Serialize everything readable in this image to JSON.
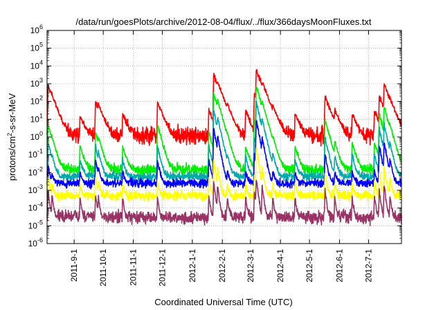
{
  "chart_data": {
    "type": "line",
    "title": "/data/run/goesPlots/archive/2012-08-04/flux/../flux/366daysMoonFluxes.txt",
    "xlabel": "Coordinated Universal Time (UTC)",
    "ylabel": {
      "base": "protons/cm",
      "sup": "2",
      "rest": "-s-sr-MeV"
    },
    "yscale": "log",
    "ylim": [
      1e-06,
      1000000.0
    ],
    "xlim": [
      "2011-08-04",
      "2012-08-04"
    ],
    "grid": true,
    "y_ticks": [
      {
        "value": 1e-06,
        "base": "10",
        "exp": "-6"
      },
      {
        "value": 1e-05,
        "base": "10",
        "exp": "-5"
      },
      {
        "value": 0.0001,
        "base": "10",
        "exp": "-4"
      },
      {
        "value": 0.001,
        "base": "10",
        "exp": "-3"
      },
      {
        "value": 0.01,
        "base": "10",
        "exp": "-2"
      },
      {
        "value": 0.1,
        "base": "10",
        "exp": "-1"
      },
      {
        "value": 1,
        "base": "10",
        "exp": "0"
      },
      {
        "value": 10,
        "base": "10",
        "exp": "1"
      },
      {
        "value": 100,
        "base": "10",
        "exp": "2"
      },
      {
        "value": 1000,
        "base": "10",
        "exp": "3"
      },
      {
        "value": 10000,
        "base": "10",
        "exp": "4"
      },
      {
        "value": 100000,
        "base": "10",
        "exp": "5"
      },
      {
        "value": 1000000,
        "base": "10",
        "exp": "6"
      }
    ],
    "x_ticks": [
      {
        "date": "2011-09-01",
        "label": "2011-9-1"
      },
      {
        "date": "2011-10-01",
        "label": "2011-10-1"
      },
      {
        "date": "2011-11-01",
        "label": "2011-11-1"
      },
      {
        "date": "2011-12-01",
        "label": "2011-12-1"
      },
      {
        "date": "2012-01-01",
        "label": "2012-1-1"
      },
      {
        "date": "2012-02-01",
        "label": "2012-2-1"
      },
      {
        "date": "2012-03-01",
        "label": "2012-3-1"
      },
      {
        "date": "2012-04-01",
        "label": "2012-4-1"
      },
      {
        "date": "2012-05-01",
        "label": "2012-5-1"
      },
      {
        "date": "2012-06-01",
        "label": "2012-6-1"
      },
      {
        "date": "2012-07-01",
        "label": "2012-7-1"
      }
    ],
    "events": [
      {
        "date": "2011-08-05",
        "peaks": [
          800,
          5,
          0.5,
          0.02,
          0.005,
          0.0008
        ]
      },
      {
        "date": "2011-08-09",
        "peaks": [
          30,
          0.3,
          0.05,
          0.005,
          0.002,
          0.0005
        ]
      },
      {
        "date": "2011-09-07",
        "peaks": [
          15,
          0.3,
          0.05,
          0.008,
          0.002,
          0.0004
        ]
      },
      {
        "date": "2011-09-23",
        "peaks": [
          100,
          2,
          0.3,
          0.05,
          0.005,
          0.0006
        ]
      },
      {
        "date": "2011-09-26",
        "peaks": [
          30,
          0.5,
          0.1,
          0.01,
          0.003,
          0.0004
        ]
      },
      {
        "date": "2011-10-21",
        "peaks": [
          20,
          0.3,
          0.05,
          0.01,
          0.002,
          0.0004
        ]
      },
      {
        "date": "2011-11-26",
        "peaks": [
          100,
          5,
          0.3,
          0.05,
          0.003,
          0.0004
        ]
      },
      {
        "date": "2012-01-18",
        "peaks": [
          30,
          2,
          0.3,
          0.05,
          0.005,
          0.0005
        ]
      },
      {
        "date": "2012-01-23",
        "peaks": [
          3000,
          300,
          30,
          3,
          0.05,
          0.003
        ]
      },
      {
        "date": "2012-01-27",
        "peaks": [
          500,
          80,
          10,
          1,
          0.02,
          0.002
        ]
      },
      {
        "date": "2012-02-06",
        "peaks": [
          30,
          0.3,
          0.05,
          0.01,
          0.002,
          0.0004
        ]
      },
      {
        "date": "2012-02-25",
        "peaks": [
          30,
          0.3,
          0.08,
          0.01,
          0.002,
          0.0004
        ]
      },
      {
        "date": "2012-03-05",
        "peaks": [
          300,
          8,
          1,
          0.1,
          0.008,
          0.0008
        ]
      },
      {
        "date": "2012-03-07",
        "peaks": [
          6000,
          800,
          100,
          10,
          0.3,
          0.005
        ]
      },
      {
        "date": "2012-03-13",
        "peaks": [
          500,
          60,
          8,
          0.8,
          0.02,
          0.002
        ]
      },
      {
        "date": "2012-03-24",
        "peaks": [
          30,
          0.5,
          0.1,
          0.01,
          0.002,
          0.0004
        ]
      },
      {
        "date": "2012-04-16",
        "peaks": [
          20,
          0.3,
          0.05,
          0.008,
          0.002,
          0.0004
        ]
      },
      {
        "date": "2012-05-17",
        "peaks": [
          200,
          10,
          1,
          0.1,
          0.01,
          0.001
        ]
      },
      {
        "date": "2012-05-27",
        "peaks": [
          30,
          0.5,
          0.08,
          0.01,
          0.002,
          0.0004
        ]
      },
      {
        "date": "2012-06-14",
        "peaks": [
          20,
          0.5,
          0.1,
          0.01,
          0.002,
          0.0004
        ]
      },
      {
        "date": "2012-07-07",
        "peaks": [
          30,
          0.5,
          0.1,
          0.01,
          0.003,
          0.0005
        ]
      },
      {
        "date": "2012-07-12",
        "peaks": [
          200,
          20,
          3,
          0.3,
          0.01,
          0.001
        ]
      },
      {
        "date": "2012-07-17",
        "peaks": [
          1000,
          50,
          5,
          0.5,
          0.02,
          0.002
        ]
      },
      {
        "date": "2012-07-23",
        "peaks": [
          30,
          2,
          0.3,
          0.05,
          0.005,
          0.0005
        ]
      }
    ],
    "series": [
      {
        "color": "#ff0000",
        "baseline": 1.2,
        "noise": 0.45,
        "decay_days": 3.0
      },
      {
        "color": "#00ee00",
        "baseline": 0.015,
        "noise": 0.25,
        "decay_days": 2.2
      },
      {
        "color": "#00aaaa",
        "baseline": 0.006,
        "noise": 0.2,
        "decay_days": 1.8
      },
      {
        "color": "#0000ff",
        "baseline": 0.0025,
        "noise": 0.2,
        "decay_days": 1.5
      },
      {
        "color": "#ffff00",
        "baseline": 0.0005,
        "noise": 0.22,
        "decay_days": 1.2
      },
      {
        "color": "#993366",
        "baseline": 3e-05,
        "noise": 0.3,
        "decay_days": 1.0
      }
    ]
  }
}
